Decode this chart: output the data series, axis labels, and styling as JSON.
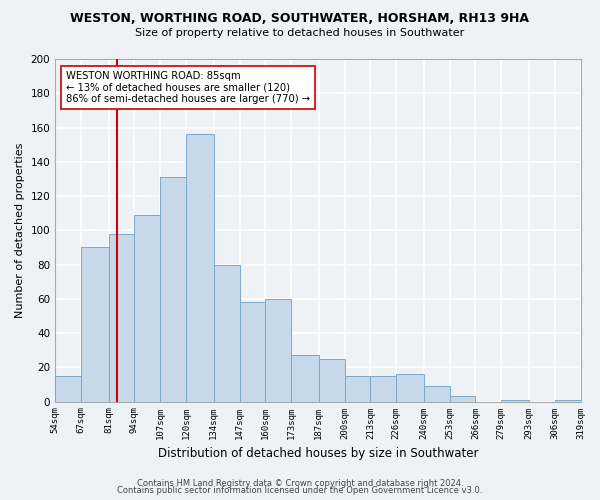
{
  "title": "WESTON, WORTHING ROAD, SOUTHWATER, HORSHAM, RH13 9HA",
  "subtitle": "Size of property relative to detached houses in Southwater",
  "xlabel": "Distribution of detached houses by size in Southwater",
  "ylabel": "Number of detached properties",
  "bar_color": "#c8d8eb",
  "bar_edgecolor": "#7aaac8",
  "bins": [
    54,
    67,
    81,
    94,
    107,
    120,
    134,
    147,
    160,
    173,
    187,
    200,
    213,
    226,
    240,
    253,
    266,
    279,
    293,
    306,
    319
  ],
  "counts": [
    15,
    90,
    98,
    109,
    131,
    156,
    80,
    58,
    60,
    27,
    25,
    15,
    15,
    16,
    9,
    3,
    0,
    1,
    0,
    1
  ],
  "tick_labels": [
    "54sqm",
    "67sqm",
    "81sqm",
    "94sqm",
    "107sqm",
    "120sqm",
    "134sqm",
    "147sqm",
    "160sqm",
    "173sqm",
    "187sqm",
    "200sqm",
    "213sqm",
    "226sqm",
    "240sqm",
    "253sqm",
    "266sqm",
    "279sqm",
    "293sqm",
    "306sqm",
    "319sqm"
  ],
  "ylim": [
    0,
    200
  ],
  "yticks": [
    0,
    20,
    40,
    60,
    80,
    100,
    120,
    140,
    160,
    180,
    200
  ],
  "vline_x": 85,
  "vline_color": "#cc0000",
  "annotation_title": "WESTON WORTHING ROAD: 85sqm",
  "annotation_line1": "← 13% of detached houses are smaller (120)",
  "annotation_line2": "86% of semi-detached houses are larger (770) →",
  "footer1": "Contains HM Land Registry data © Crown copyright and database right 2024.",
  "footer2": "Contains public sector information licensed under the Open Government Licence v3.0.",
  "background_color": "#eef2f7",
  "grid_color": "#ffffff"
}
